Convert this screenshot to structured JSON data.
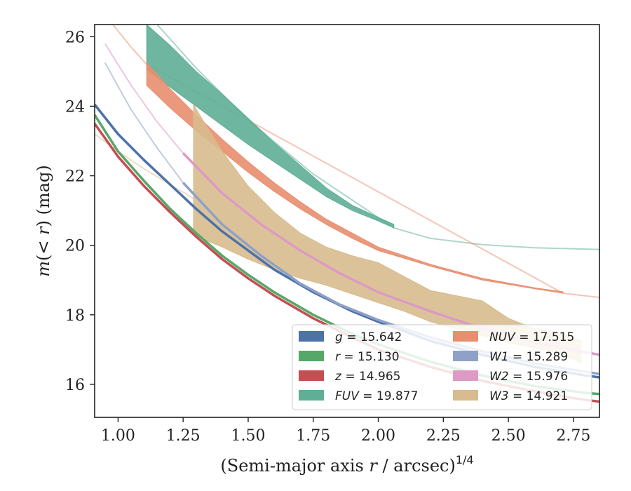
{
  "chart_data": {
    "type": "line",
    "xlabel": "(Semi-major axis r / arcsec)",
    "xlabel_parts": {
      "pre": "(Semi-major axis ",
      "var": "r",
      "post": " / arcsec)",
      "sup": "1/4"
    },
    "ylabel_parts": {
      "m": "m",
      "open": "(",
      "lt": "< ",
      "r": "r",
      "close": ")",
      "unit": " (mag)"
    },
    "xlim": [
      0.91,
      2.85
    ],
    "ylim": [
      26.35,
      15.05
    ],
    "y_inverted": true,
    "xticks": [
      "1.00",
      "1.25",
      "1.50",
      "1.75",
      "2.00",
      "2.25",
      "2.50",
      "2.75"
    ],
    "xtick_values": [
      1.0,
      1.25,
      1.5,
      1.75,
      2.0,
      2.25,
      2.5,
      2.75
    ],
    "yticks": [
      "16",
      "18",
      "20",
      "22",
      "24",
      "26"
    ],
    "ytick_values": [
      16,
      18,
      20,
      22,
      24,
      26
    ],
    "grid": false,
    "legend_position": "lower-right",
    "legend": [
      {
        "var": "g",
        "value": "15.642"
      },
      {
        "var": "r",
        "value": "15.130"
      },
      {
        "var": "z",
        "value": "14.965"
      },
      {
        "var": "FUV",
        "value": "19.877"
      },
      {
        "var": "NUV",
        "value": "17.515"
      },
      {
        "var": "W1",
        "value": "15.289"
      },
      {
        "var": "W2",
        "value": "15.976"
      },
      {
        "var": "W3",
        "value": "14.921"
      }
    ],
    "series": [
      {
        "name": "g",
        "color": "#4c72a8",
        "kind": "line",
        "x": [
          0.91,
          1.0,
          1.1,
          1.2,
          1.3,
          1.4,
          1.5,
          1.6,
          1.75,
          1.9,
          2.0,
          2.2,
          2.4,
          2.6,
          2.8,
          2.85
        ],
        "y": [
          24.05,
          23.2,
          22.45,
          21.75,
          21.05,
          20.4,
          19.85,
          19.3,
          18.65,
          18.1,
          17.8,
          17.25,
          16.85,
          16.5,
          16.25,
          16.2
        ],
        "solid_until": 2.85
      },
      {
        "name": "r",
        "color": "#55a868",
        "kind": "line",
        "x": [
          0.91,
          1.0,
          1.1,
          1.2,
          1.3,
          1.4,
          1.5,
          1.6,
          1.75,
          1.9,
          2.0,
          2.2,
          2.4,
          2.6,
          2.8,
          2.85
        ],
        "y": [
          23.75,
          22.7,
          21.85,
          21.05,
          20.35,
          19.7,
          19.15,
          18.65,
          18.0,
          17.45,
          17.15,
          16.65,
          16.25,
          15.95,
          15.75,
          15.72
        ],
        "solid_until": 2.85
      },
      {
        "name": "z",
        "color": "#c44e52",
        "kind": "line",
        "x": [
          0.91,
          1.0,
          1.1,
          1.2,
          1.3,
          1.4,
          1.5,
          1.6,
          1.75,
          1.9,
          2.0,
          2.2,
          2.4,
          2.6,
          2.75,
          2.85
        ],
        "y": [
          23.5,
          22.55,
          21.7,
          20.95,
          20.25,
          19.6,
          19.05,
          18.55,
          17.9,
          17.35,
          17.0,
          16.5,
          16.1,
          15.8,
          15.6,
          15.5
        ],
        "solid_until": 2.75
      },
      {
        "name": "FUV",
        "color": "#5fae96",
        "kind": "band",
        "x": [
          1.11,
          1.2,
          1.3,
          1.4,
          1.5,
          1.6,
          1.7,
          1.8,
          1.9,
          2.0,
          2.06
        ],
        "y_upper": [
          25.05,
          24.55,
          24.0,
          23.45,
          22.9,
          22.4,
          21.9,
          21.4,
          21.0,
          20.7,
          20.5
        ],
        "y_lower": [
          26.35,
          25.75,
          25.0,
          24.35,
          23.65,
          22.95,
          22.3,
          21.65,
          21.15,
          20.8,
          20.6
        ],
        "faint_x": [
          1.15,
          1.3,
          1.5,
          1.75,
          2.06,
          2.2,
          2.4,
          2.6,
          2.85
        ],
        "faint_y": [
          26.35,
          25.1,
          23.6,
          22.05,
          20.5,
          20.2,
          20.02,
          19.93,
          19.88
        ]
      },
      {
        "name": "NUV",
        "color": "#e98e6e",
        "kind": "band",
        "x": [
          1.11,
          1.2,
          1.3,
          1.4,
          1.5,
          1.6,
          1.7,
          1.8,
          1.9,
          2.0,
          2.2,
          2.4,
          2.6,
          2.71
        ],
        "y_upper": [
          24.6,
          23.95,
          23.3,
          22.7,
          22.1,
          21.55,
          21.05,
          20.6,
          20.2,
          19.85,
          19.4,
          19.0,
          18.75,
          18.62
        ],
        "y_lower": [
          25.25,
          24.5,
          23.75,
          23.05,
          22.4,
          21.8,
          21.25,
          20.75,
          20.35,
          19.95,
          19.45,
          19.05,
          18.78,
          18.66
        ],
        "faint_x": [
          0.98,
          1.05,
          1.11,
          2.71,
          2.85
        ],
        "faint_y": [
          26.35,
          25.7,
          25.2,
          18.62,
          18.5
        ]
      },
      {
        "name": "W1",
        "color": "#8fa1c7",
        "kind": "line",
        "x": [
          0.95,
          1.05,
          1.15,
          1.25,
          1.4,
          1.55,
          1.7,
          1.85,
          2.0,
          2.2,
          2.4,
          2.6,
          2.85
        ],
        "y": [
          25.25,
          23.9,
          22.8,
          21.8,
          20.6,
          19.7,
          18.9,
          18.3,
          17.85,
          17.35,
          16.95,
          16.6,
          16.3
        ],
        "faint_until": 1.25
      },
      {
        "name": "W2",
        "color": "#dd9ac4",
        "kind": "line",
        "x": [
          0.95,
          1.05,
          1.15,
          1.25,
          1.4,
          1.55,
          1.7,
          1.85,
          2.0,
          2.2,
          2.4,
          2.6,
          2.85
        ],
        "y": [
          25.8,
          24.6,
          23.55,
          22.65,
          21.5,
          20.6,
          19.85,
          19.2,
          18.65,
          18.1,
          17.6,
          17.2,
          16.85
        ],
        "faint_until": 1.25
      },
      {
        "name": "W3",
        "color": "#d8bb8e",
        "kind": "band",
        "x": [
          1.29,
          1.35,
          1.4,
          1.5,
          1.6,
          1.7,
          1.8,
          1.9,
          2.0,
          2.1,
          2.2,
          2.3,
          2.4,
          2.5,
          2.6,
          2.7,
          2.78
        ],
        "y_upper": [
          20.3,
          20.1,
          19.95,
          19.6,
          19.3,
          19.05,
          18.85,
          18.6,
          18.35,
          18.1,
          17.8,
          17.6,
          17.4,
          17.2,
          17.05,
          16.9,
          16.6
        ],
        "y_lower": [
          24.05,
          23.3,
          22.7,
          21.7,
          20.95,
          20.35,
          19.95,
          19.7,
          19.5,
          19.1,
          18.7,
          18.55,
          18.4,
          17.9,
          17.6,
          17.5,
          17.25
        ],
        "faint_x": [
          0.91,
          1.0,
          1.1,
          1.2,
          1.29
        ],
        "faint_y": [
          23.2,
          22.7,
          22.2,
          21.75,
          21.35
        ]
      }
    ]
  }
}
